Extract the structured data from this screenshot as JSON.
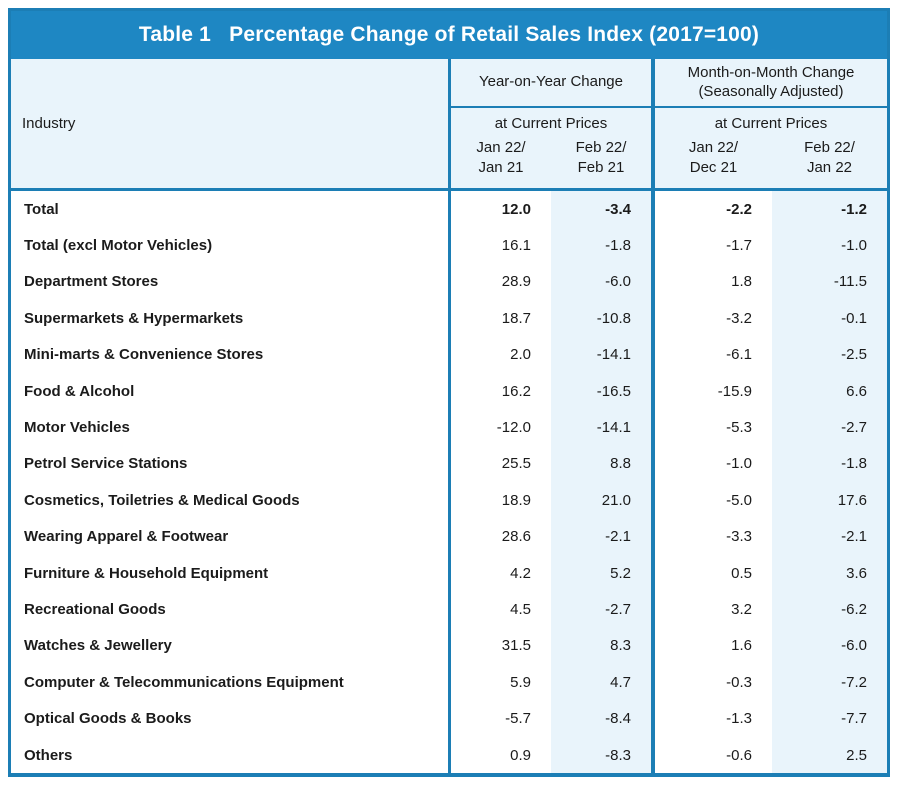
{
  "colors": {
    "title_bar": "#1E87C3",
    "border": "#1C7EB5",
    "header_bg": "#E9F4FB",
    "stripe_bg": "#E9F4FB",
    "text": "#1B1B1B",
    "title_text": "#FFFFFF"
  },
  "title": "Table 1   Percentage Change of Retail Sales Index (2017=100)",
  "table": {
    "industry_header": "Industry",
    "groups": [
      {
        "title": "Year-on-Year Change",
        "subtitle": "at Current Prices",
        "periods": [
          "Jan 22/\nJan 21",
          "Feb 22/\nFeb 21"
        ]
      },
      {
        "title": "Month-on-Month Change\n(Seasonally Adjusted)",
        "subtitle": "at Current Prices",
        "periods": [
          "Jan 22/\nDec 21",
          "Feb 22/\nJan 22"
        ]
      }
    ],
    "rows": [
      {
        "industry": "Total",
        "values": [
          "12.0",
          "-3.4",
          "-2.2",
          "-1.2"
        ],
        "emphasis": true
      },
      {
        "industry": "Total (excl Motor Vehicles)",
        "values": [
          "16.1",
          "-1.8",
          "-1.7",
          "-1.0"
        ],
        "emphasis": false
      },
      {
        "industry": "Department Stores",
        "values": [
          "28.9",
          "-6.0",
          "1.8",
          "-11.5"
        ],
        "emphasis": false
      },
      {
        "industry": "Supermarkets & Hypermarkets",
        "values": [
          "18.7",
          "-10.8",
          "-3.2",
          "-0.1"
        ],
        "emphasis": false
      },
      {
        "industry": "Mini-marts & Convenience Stores",
        "values": [
          "2.0",
          "-14.1",
          "-6.1",
          "-2.5"
        ],
        "emphasis": false
      },
      {
        "industry": "Food & Alcohol",
        "values": [
          "16.2",
          "-16.5",
          "-15.9",
          "6.6"
        ],
        "emphasis": false
      },
      {
        "industry": "Motor Vehicles",
        "values": [
          "-12.0",
          "-14.1",
          "-5.3",
          "-2.7"
        ],
        "emphasis": false
      },
      {
        "industry": "Petrol Service Stations",
        "values": [
          "25.5",
          "8.8",
          "-1.0",
          "-1.8"
        ],
        "emphasis": false
      },
      {
        "industry": "Cosmetics, Toiletries & Medical Goods",
        "values": [
          "18.9",
          "21.0",
          "-5.0",
          "17.6"
        ],
        "emphasis": false
      },
      {
        "industry": "Wearing Apparel & Footwear",
        "values": [
          "28.6",
          "-2.1",
          "-3.3",
          "-2.1"
        ],
        "emphasis": false
      },
      {
        "industry": "Furniture & Household Equipment",
        "values": [
          "4.2",
          "5.2",
          "0.5",
          "3.6"
        ],
        "emphasis": false
      },
      {
        "industry": "Recreational Goods",
        "values": [
          "4.5",
          "-2.7",
          "3.2",
          "-6.2"
        ],
        "emphasis": false
      },
      {
        "industry": "Watches & Jewellery",
        "values": [
          "31.5",
          "8.3",
          "1.6",
          "-6.0"
        ],
        "emphasis": false
      },
      {
        "industry": "Computer & Telecommunications Equipment",
        "values": [
          "5.9",
          "4.7",
          "-0.3",
          "-7.2"
        ],
        "emphasis": false
      },
      {
        "industry": "Optical Goods & Books",
        "values": [
          "-5.7",
          "-8.4",
          "-1.3",
          "-7.7"
        ],
        "emphasis": false
      },
      {
        "industry": "Others",
        "values": [
          "0.9",
          "-8.3",
          "-0.6",
          "2.5"
        ],
        "emphasis": false
      }
    ]
  },
  "chart_data": {
    "type": "table",
    "title": "Table 1   Percentage Change of Retail Sales Index (2017=100)",
    "column_groups": [
      "Year-on-Year Change at Current Prices",
      "Month-on-Month Change (Seasonally Adjusted) at Current Prices"
    ],
    "columns": [
      "Industry",
      "Jan 22/Jan 21",
      "Feb 22/Feb 21",
      "Jan 22/Dec 21",
      "Feb 22/Jan 22"
    ],
    "rows": [
      [
        "Total",
        12.0,
        -3.4,
        -2.2,
        -1.2
      ],
      [
        "Total (excl Motor Vehicles)",
        16.1,
        -1.8,
        -1.7,
        -1.0
      ],
      [
        "Department Stores",
        28.9,
        -6.0,
        1.8,
        -11.5
      ],
      [
        "Supermarkets & Hypermarkets",
        18.7,
        -10.8,
        -3.2,
        -0.1
      ],
      [
        "Mini-marts & Convenience Stores",
        2.0,
        -14.1,
        -6.1,
        -2.5
      ],
      [
        "Food & Alcohol",
        16.2,
        -16.5,
        -15.9,
        6.6
      ],
      [
        "Motor Vehicles",
        -12.0,
        -14.1,
        -5.3,
        -2.7
      ],
      [
        "Petrol Service Stations",
        25.5,
        8.8,
        -1.0,
        -1.8
      ],
      [
        "Cosmetics, Toiletries & Medical Goods",
        18.9,
        21.0,
        -5.0,
        17.6
      ],
      [
        "Wearing Apparel & Footwear",
        28.6,
        -2.1,
        -3.3,
        -2.1
      ],
      [
        "Furniture & Household Equipment",
        4.2,
        5.2,
        0.5,
        3.6
      ],
      [
        "Recreational Goods",
        4.5,
        -2.7,
        3.2,
        -6.2
      ],
      [
        "Watches & Jewellery",
        31.5,
        8.3,
        1.6,
        -6.0
      ],
      [
        "Computer & Telecommunications Equipment",
        5.9,
        4.7,
        -0.3,
        -7.2
      ],
      [
        "Optical Goods & Books",
        -5.7,
        -8.4,
        -1.3,
        -7.7
      ],
      [
        "Others",
        0.9,
        -8.3,
        -0.6,
        2.5
      ]
    ]
  }
}
